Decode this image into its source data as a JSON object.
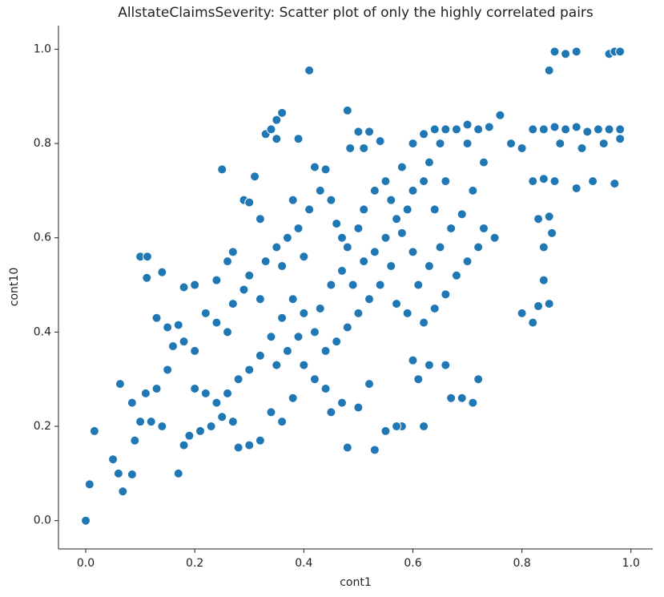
{
  "chart_data": {
    "type": "scatter",
    "title": "AllstateClaimsSeverity: Scatter plot of only the highly correlated pairs",
    "xlabel": "cont1",
    "ylabel": "cont10",
    "color": "#1f77b4",
    "xlim": [
      -0.05,
      1.04
    ],
    "ylim": [
      -0.06,
      1.05
    ],
    "xticks": [
      {
        "value": 0,
        "label": "0.0"
      },
      0.2,
      0.4,
      0.6,
      0.8,
      {
        "value": 1,
        "label": "1.0"
      }
    ],
    "yticks": [
      {
        "value": 0,
        "label": "0.0"
      },
      0.2,
      0.4,
      0.6,
      0.8,
      {
        "value": 1,
        "label": "1.0"
      }
    ],
    "x": [
      0,
      0.007,
      0.016,
      0.05,
      0.06,
      0.068,
      0.063,
      0.085,
      0.085,
      0.1,
      0.113,
      0.112,
      0.13,
      0.14,
      0.15,
      0.17,
      0.18,
      0.2,
      0.24,
      0.25,
      0.26,
      0.27,
      0.29,
      0.3,
      0.31,
      0.32,
      0.33,
      0.34,
      0.35,
      0.36,
      0.35,
      0.39,
      0.41,
      0.38,
      0.42,
      0.44,
      0.48,
      0.485,
      0.5,
      0.51,
      0.52,
      0.54,
      0.58,
      0.6,
      0.62,
      0.64,
      0.66,
      0.68,
      0.7,
      0.72,
      0.74,
      0.76,
      0.78,
      0.8,
      0.82,
      0.84,
      0.86,
      0.88,
      0.9,
      0.92,
      0.94,
      0.96,
      0.98,
      0.98,
      0.95,
      0.91,
      0.87,
      0.85,
      0.86,
      0.88,
      0.9,
      0.96,
      0.97,
      0.98,
      0.82,
      0.84,
      0.86,
      0.9,
      0.93,
      0.97,
      0.83,
      0.85,
      0.84,
      0.855,
      0.84,
      0.85,
      0.83,
      0.8,
      0.82,
      0.75,
      0.73,
      0.72,
      0.7,
      0.68,
      0.66,
      0.64,
      0.62,
      0.63,
      0.66,
      0.67,
      0.69,
      0.71,
      0.72,
      0.6,
      0.61,
      0.58,
      0.62,
      0.57,
      0.55,
      0.53,
      0.48,
      0.5,
      0.52,
      0.47,
      0.45,
      0.44,
      0.42,
      0.4,
      0.38,
      0.36,
      0.34,
      0.32,
      0.3,
      0.28,
      0.27,
      0.25,
      0.23,
      0.21,
      0.19,
      0.17,
      0.18,
      0.14,
      0.12,
      0.1,
      0.09,
      0.11,
      0.13,
      0.15,
      0.16,
      0.18,
      0.2,
      0.22,
      0.24,
      0.26,
      0.27,
      0.29,
      0.3,
      0.32,
      0.33,
      0.35,
      0.36,
      0.37,
      0.39,
      0.4,
      0.41,
      0.43,
      0.45,
      0.46,
      0.47,
      0.48,
      0.5,
      0.51,
      0.53,
      0.55,
      0.56,
      0.57,
      0.58,
      0.59,
      0.6,
      0.62,
      0.63,
      0.65,
      0.6,
      0.56,
      0.54,
      0.52,
      0.5,
      0.48,
      0.46,
      0.44,
      0.42,
      0.4,
      0.38,
      0.36,
      0.34,
      0.32,
      0.3,
      0.28,
      0.26,
      0.24,
      0.22,
      0.2,
      0.35,
      0.37,
      0.39,
      0.43,
      0.45,
      0.47,
      0.49,
      0.51,
      0.53,
      0.55,
      0.57,
      0.59,
      0.61,
      0.63,
      0.65,
      0.67,
      0.69,
      0.71,
      0.73,
      0.7,
      0.66,
      0.64
    ],
    "y": [
      0,
      0.077,
      0.19,
      0.13,
      0.1,
      0.062,
      0.29,
      0.25,
      0.098,
      0.56,
      0.56,
      0.515,
      0.43,
      0.527,
      0.41,
      0.415,
      0.495,
      0.5,
      0.51,
      0.745,
      0.55,
      0.57,
      0.68,
      0.675,
      0.73,
      0.64,
      0.82,
      0.83,
      0.85,
      0.865,
      0.81,
      0.81,
      0.955,
      0.68,
      0.75,
      0.745,
      0.87,
      0.79,
      0.825,
      0.79,
      0.825,
      0.805,
      0.75,
      0.8,
      0.82,
      0.83,
      0.83,
      0.83,
      0.84,
      0.83,
      0.835,
      0.86,
      0.8,
      0.79,
      0.83,
      0.83,
      0.835,
      0.83,
      0.835,
      0.825,
      0.83,
      0.83,
      0.83,
      0.81,
      0.8,
      0.79,
      0.8,
      0.955,
      0.995,
      0.99,
      0.995,
      0.99,
      0.995,
      0.995,
      0.72,
      0.725,
      0.72,
      0.705,
      0.72,
      0.715,
      0.64,
      0.645,
      0.58,
      0.61,
      0.51,
      0.46,
      0.455,
      0.44,
      0.42,
      0.6,
      0.62,
      0.58,
      0.55,
      0.52,
      0.48,
      0.45,
      0.42,
      0.33,
      0.33,
      0.26,
      0.26,
      0.25,
      0.3,
      0.34,
      0.3,
      0.2,
      0.2,
      0.2,
      0.19,
      0.15,
      0.155,
      0.24,
      0.29,
      0.25,
      0.23,
      0.28,
      0.3,
      0.33,
      0.26,
      0.21,
      0.23,
      0.17,
      0.16,
      0.155,
      0.21,
      0.22,
      0.2,
      0.19,
      0.18,
      0.1,
      0.16,
      0.2,
      0.21,
      0.21,
      0.17,
      0.27,
      0.28,
      0.32,
      0.37,
      0.38,
      0.36,
      0.44,
      0.42,
      0.4,
      0.46,
      0.49,
      0.52,
      0.47,
      0.55,
      0.58,
      0.54,
      0.6,
      0.62,
      0.56,
      0.66,
      0.7,
      0.68,
      0.63,
      0.6,
      0.58,
      0.62,
      0.66,
      0.7,
      0.72,
      0.68,
      0.64,
      0.61,
      0.66,
      0.7,
      0.72,
      0.76,
      0.8,
      0.57,
      0.54,
      0.5,
      0.47,
      0.44,
      0.41,
      0.38,
      0.36,
      0.4,
      0.44,
      0.47,
      0.43,
      0.39,
      0.35,
      0.32,
      0.3,
      0.27,
      0.25,
      0.27,
      0.28,
      0.33,
      0.36,
      0.39,
      0.45,
      0.5,
      0.53,
      0.5,
      0.55,
      0.57,
      0.6,
      0.46,
      0.44,
      0.5,
      0.54,
      0.58,
      0.62,
      0.65,
      0.7,
      0.76,
      0.8,
      0.72,
      0.66
    ]
  }
}
